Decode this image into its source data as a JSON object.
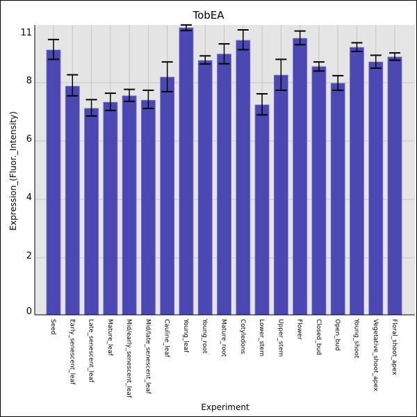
{
  "chart_data": {
    "type": "bar",
    "title": "TobEA",
    "xlabel": "Experiment",
    "ylabel": "Expression_(Fluor._Intensity)",
    "ylim": [
      0,
      10.2
    ],
    "yticks": [
      0,
      2,
      4,
      6,
      8
    ],
    "ytick_labels": [
      "0",
      "2",
      "4",
      "6",
      "8"
    ],
    "ymax_label": "11",
    "grid": true,
    "bar_color": "#4b47b3",
    "background_color": "#e5e5e5",
    "categories": [
      "Seed",
      "Early_senescent_leaf",
      "Late_senescent_leaf",
      "Mature_leaf",
      "Mid/early_senescent_leaf",
      "Mid/late_senescent_leaf",
      "Cauline_leaf",
      "Young_leaf",
      "Young_root",
      "Mature_root",
      "Cotyledons",
      "Lower_stem",
      "Upper_stem",
      "Flower",
      "Closed_bud",
      "Open_bud",
      "Young_shoot",
      "Vegetative_shoot_apex",
      "Floral_shoot_apex"
    ],
    "values": [
      9.12,
      7.88,
      7.12,
      7.33,
      7.55,
      7.4,
      8.19,
      9.88,
      8.76,
      8.98,
      9.45,
      7.24,
      8.26,
      9.52,
      8.55,
      7.98,
      9.21,
      8.71,
      8.88
    ],
    "error_high": [
      9.48,
      8.27,
      7.42,
      7.64,
      7.77,
      7.74,
      8.71,
      9.98,
      8.92,
      9.33,
      9.81,
      7.62,
      8.8,
      9.77,
      8.71,
      8.24,
      9.37,
      8.94,
      9.02
    ],
    "error_low": [
      8.8,
      7.55,
      6.86,
      7.05,
      7.36,
      7.12,
      7.69,
      9.79,
      8.64,
      8.65,
      9.13,
      6.9,
      7.74,
      9.3,
      8.4,
      7.74,
      9.07,
      8.5,
      8.77
    ]
  }
}
